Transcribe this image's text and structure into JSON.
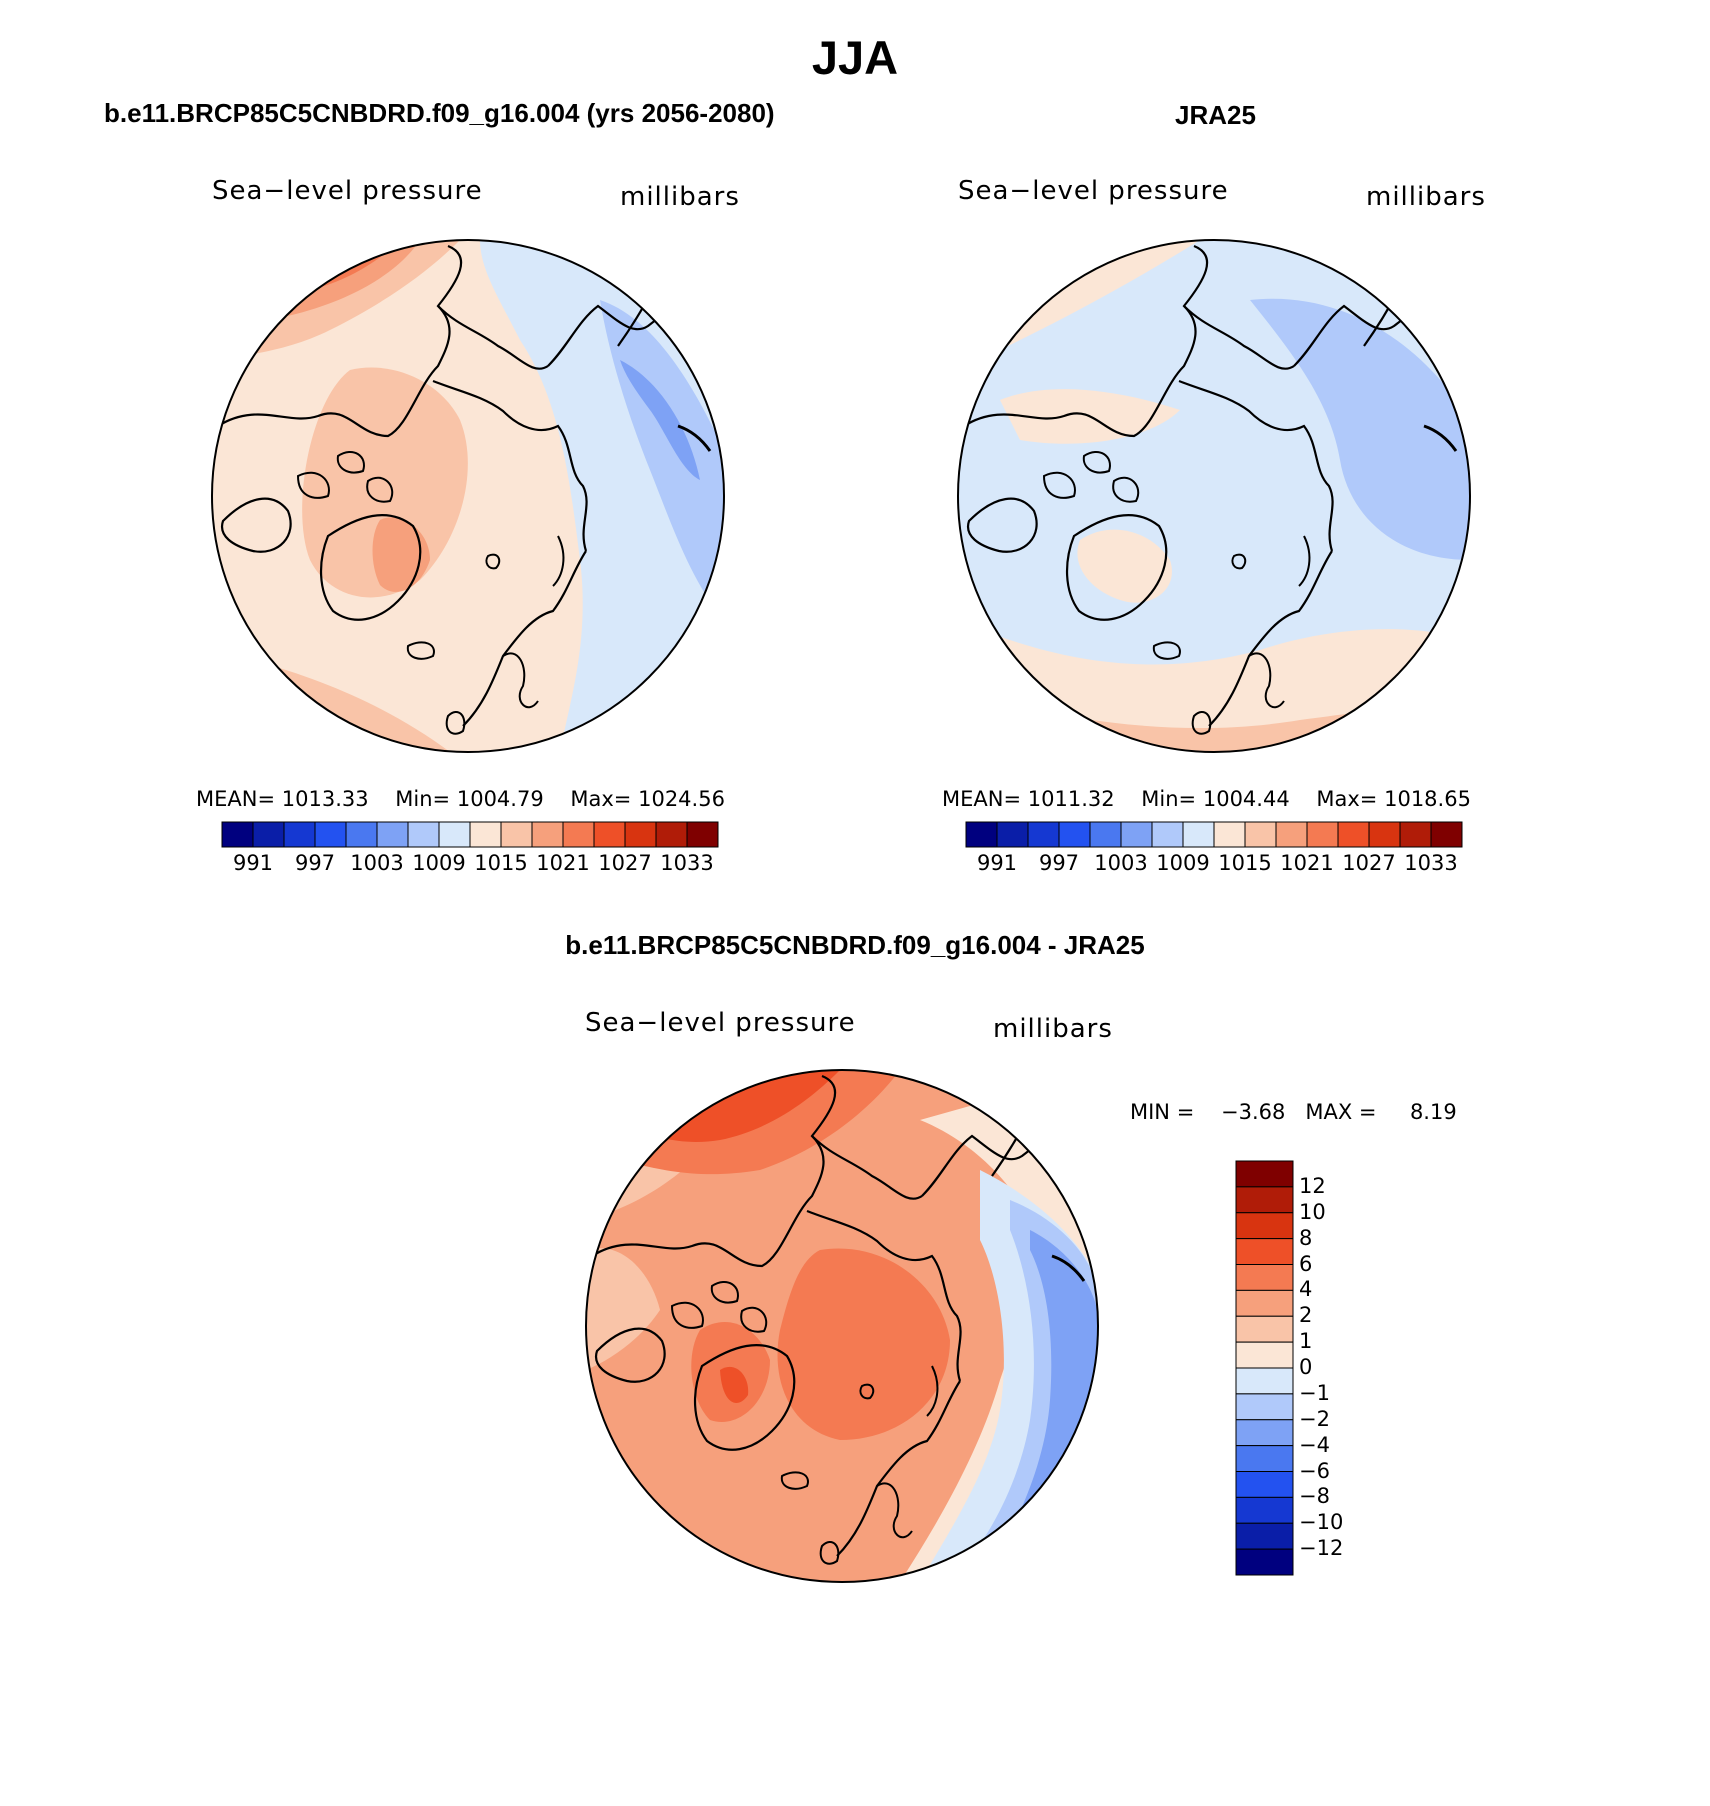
{
  "page_title": "JJA",
  "left_panel": {
    "header": "b.e11.BRCP85C5CNBDRD.f09_g16.004 (yrs 2056-2080)",
    "variable": "Sea−level pressure",
    "units": "millibars",
    "stats": {
      "mean_label": "MEAN=",
      "mean": "1013.33",
      "min_label": "Min=",
      "min": "1004.79",
      "max_label": "Max=",
      "max": "1024.56"
    }
  },
  "right_panel": {
    "header": "JRA25",
    "variable": "Sea−level pressure",
    "units": "millibars",
    "stats": {
      "mean_label": "MEAN=",
      "mean": "1011.32",
      "min_label": "Min=",
      "min": "1004.44",
      "max_label": "Max=",
      "max": "1018.65"
    }
  },
  "diff_panel": {
    "header": "b.e11.BRCP85C5CNBDRD.f09_g16.004 - JRA25",
    "variable": "Sea−level pressure",
    "units": "millibars",
    "minmax": {
      "min_label": "MIN =",
      "min": "−3.68",
      "max_label": "MAX =",
      "max": "8.19"
    }
  },
  "abs_colorbar": {
    "colors": [
      "#00007f",
      "#0a1ea8",
      "#1538d2",
      "#2352f0",
      "#4a78f0",
      "#7ea2f5",
      "#b0c9fa",
      "#d8e8fa",
      "#fbe6d6",
      "#f9c4a8",
      "#f6a07c",
      "#f47a52",
      "#ee5028",
      "#d83410",
      "#b01c08",
      "#7f0000"
    ],
    "tick_labels": [
      "991",
      "997",
      "1003",
      "1009",
      "1015",
      "1021",
      "1027",
      "1033"
    ]
  },
  "diff_colorbar": {
    "colors": [
      "#7f0000",
      "#b01c08",
      "#d83410",
      "#ee5028",
      "#f47a52",
      "#f6a07c",
      "#f9c4a8",
      "#fbe6d6",
      "#d8e8fa",
      "#b0c9fa",
      "#7ea2f5",
      "#4a78f0",
      "#2352f0",
      "#1538d2",
      "#0a1ea8",
      "#00007f"
    ],
    "tick_labels": [
      "12",
      "10",
      "8",
      "6",
      "4",
      "2",
      "1",
      "0",
      "−1",
      "−2",
      "−4",
      "−6",
      "−8",
      "−10",
      "−12"
    ]
  },
  "palette": {
    "light_blue": "#d8e8fa",
    "pale_blue": "#b0c9fa",
    "mid_blue": "#7ea2f5",
    "cream": "#fbe6d6",
    "peach": "#f9c4a8",
    "salmon": "#f6a07c",
    "orange": "#f47a52",
    "red_orange": "#ee5028"
  }
}
